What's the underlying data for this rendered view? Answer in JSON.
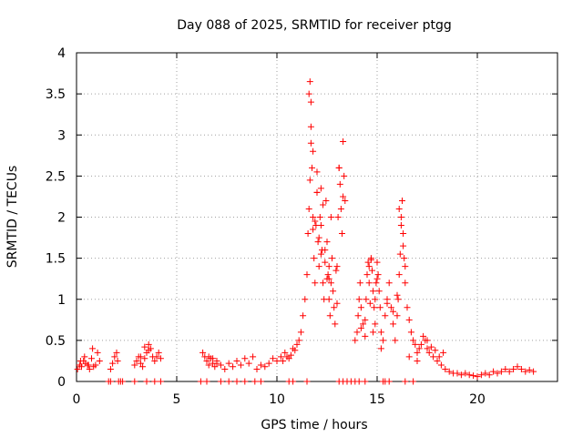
{
  "chart_data": {
    "type": "scatter",
    "title": "Day 088 of 2025, SRMTID for receiver ptgg",
    "xlabel": "GPS time / hours",
    "ylabel": "SRMTID / TECUs",
    "xlim": [
      0,
      24
    ],
    "ylim": [
      0,
      4
    ],
    "xticks": [
      0,
      5,
      10,
      15,
      20
    ],
    "yticks": [
      0,
      0.5,
      1,
      1.5,
      2,
      2.5,
      3,
      3.5,
      4
    ],
    "ytick_labels": [
      "0",
      "0.5",
      "1",
      "1.5",
      "2",
      "2.5",
      "3",
      "3.5",
      "4"
    ],
    "grid": true,
    "marker": "+",
    "color": "#ff0000",
    "series": [
      {
        "name": "SRMTID",
        "x": [
          0.05,
          0.15,
          0.25,
          0.35,
          0.45,
          0.55,
          0.65,
          0.75,
          0.85,
          0.95,
          1.05,
          1.15,
          1.7,
          1.8,
          1.9,
          2.0,
          2.05,
          2.9,
          3.0,
          3.1,
          3.2,
          3.3,
          3.4,
          3.5,
          3.6,
          3.7,
          3.8,
          3.9,
          4.0,
          4.1,
          4.2,
          6.3,
          6.4,
          6.5,
          6.6,
          6.7,
          6.8,
          6.9,
          7.0,
          7.2,
          7.4,
          7.6,
          7.8,
          8.0,
          8.2,
          8.4,
          8.6,
          8.8,
          9.0,
          9.2,
          9.4,
          9.6,
          9.8,
          10.0,
          10.2,
          10.4,
          10.6,
          10.8,
          11.0,
          11.1,
          11.2,
          11.3,
          11.4,
          11.5,
          11.55,
          11.6,
          11.65,
          11.7,
          11.75,
          11.8,
          11.85,
          11.9,
          11.95,
          12.0,
          12.05,
          12.1,
          12.15,
          12.2,
          12.25,
          12.3,
          12.35,
          12.4,
          12.45,
          12.5,
          12.55,
          12.6,
          12.65,
          12.7,
          12.75,
          12.8,
          12.85,
          12.9,
          12.95,
          13.0,
          13.05,
          13.1,
          13.15,
          13.2,
          13.25,
          13.3,
          13.35,
          13.4,
          13.9,
          14.0,
          14.05,
          14.1,
          14.15,
          14.2,
          14.3,
          14.4,
          14.45,
          14.5,
          14.55,
          14.6,
          14.65,
          14.7,
          14.75,
          14.8,
          14.85,
          14.9,
          14.95,
          15.0,
          15.05,
          15.1,
          15.15,
          15.2,
          15.3,
          15.4,
          15.5,
          15.6,
          15.7,
          15.8,
          15.9,
          16.0,
          16.05,
          16.1,
          16.15,
          16.2,
          16.25,
          16.3,
          16.35,
          16.4,
          16.5,
          16.6,
          16.7,
          16.8,
          16.9,
          17.0,
          17.1,
          17.2,
          17.3,
          17.4,
          17.5,
          17.6,
          17.8,
          18.0,
          18.2,
          18.4,
          18.6,
          18.8,
          19.0,
          19.2,
          19.4,
          19.6,
          19.8,
          20.0,
          20.2,
          20.4,
          20.6,
          20.8,
          21.0,
          21.2,
          21.4,
          21.6,
          21.8,
          22.0,
          22.2,
          22.4,
          22.6,
          22.8,
          11.6,
          11.7,
          11.8,
          12.0,
          12.2,
          12.4,
          12.6,
          13.1,
          13.3,
          11.65,
          11.9,
          12.1,
          12.3,
          12.5,
          12.7,
          14.6,
          14.7,
          14.9,
          15.0,
          16.1,
          16.2,
          16.3,
          15.5,
          15.8,
          16.0,
          16.4,
          14.2,
          14.4,
          11.7,
          12.0,
          0.2,
          0.4,
          0.6,
          0.8,
          3.2,
          3.4,
          3.6,
          6.6,
          6.8,
          7.0,
          10.3,
          10.5,
          10.7,
          10.9,
          17.5,
          17.7,
          17.9,
          18.1,
          18.3,
          11.8,
          12.2,
          12.6,
          13.0,
          14.8,
          15.2,
          16.6,
          17.0
        ],
        "y": [
          0.15,
          0.2,
          0.18,
          0.25,
          0.22,
          0.2,
          0.15,
          0.28,
          0.18,
          0.2,
          0.35,
          0.25,
          0.15,
          0.22,
          0.3,
          0.35,
          0.25,
          0.2,
          0.25,
          0.3,
          0.22,
          0.18,
          0.28,
          0.35,
          0.45,
          0.4,
          0.3,
          0.25,
          0.3,
          0.35,
          0.28,
          0.35,
          0.3,
          0.25,
          0.2,
          0.28,
          0.22,
          0.18,
          0.25,
          0.2,
          0.15,
          0.22,
          0.18,
          0.25,
          0.2,
          0.28,
          0.22,
          0.3,
          0.15,
          0.2,
          0.18,
          0.22,
          0.28,
          0.25,
          0.3,
          0.35,
          0.28,
          0.4,
          0.45,
          0.5,
          0.6,
          0.8,
          1.0,
          1.3,
          1.8,
          2.1,
          3.65,
          3.4,
          2.6,
          2.0,
          1.5,
          1.2,
          1.9,
          2.3,
          1.7,
          1.4,
          2.0,
          2.35,
          1.6,
          1.2,
          1.0,
          1.45,
          2.2,
          1.7,
          1.3,
          1.0,
          0.8,
          1.2,
          1.5,
          1.1,
          0.9,
          0.7,
          1.35,
          1.4,
          2.0,
          2.6,
          2.4,
          2.1,
          1.8,
          2.92,
          2.5,
          2.2,
          0.5,
          0.6,
          0.8,
          1.0,
          1.2,
          0.9,
          0.7,
          0.55,
          1.0,
          1.3,
          1.45,
          1.2,
          0.95,
          1.5,
          1.35,
          1.1,
          0.9,
          0.7,
          1.2,
          1.45,
          1.3,
          1.1,
          0.9,
          0.6,
          0.5,
          0.8,
          1.0,
          1.2,
          0.9,
          0.7,
          0.5,
          0.8,
          1.0,
          1.3,
          1.55,
          2.0,
          2.2,
          1.8,
          1.5,
          1.2,
          0.9,
          0.75,
          0.6,
          0.5,
          0.45,
          0.35,
          0.4,
          0.45,
          0.55,
          0.5,
          0.4,
          0.35,
          0.3,
          0.25,
          0.2,
          0.15,
          0.12,
          0.1,
          0.1,
          0.08,
          0.1,
          0.08,
          0.07,
          0.06,
          0.08,
          0.1,
          0.08,
          0.12,
          0.1,
          0.12,
          0.15,
          0.12,
          0.15,
          0.18,
          0.15,
          0.12,
          0.14,
          0.12,
          3.5,
          3.1,
          2.8,
          2.3,
          1.9,
          1.6,
          1.4,
          2.6,
          2.25,
          2.45,
          1.95,
          1.75,
          2.15,
          1.25,
          2.0,
          1.4,
          1.48,
          1.0,
          1.25,
          2.1,
          1.9,
          1.65,
          0.95,
          0.85,
          1.05,
          1.4,
          0.65,
          0.75,
          2.9,
          2.55,
          0.25,
          0.3,
          0.2,
          0.4,
          0.3,
          0.42,
          0.38,
          0.3,
          0.28,
          0.22,
          0.25,
          0.3,
          0.32,
          0.38,
          0.5,
          0.42,
          0.38,
          0.3,
          0.35,
          1.85,
          1.55,
          1.25,
          0.95,
          0.6,
          0.4,
          0.3,
          0.25
        ],
        "baseline_x": [
          1.6,
          1.7,
          2.1,
          2.2,
          2.3,
          2.9,
          3.5,
          3.9,
          4.2,
          6.2,
          6.5,
          7.2,
          7.6,
          8.0,
          8.4,
          8.9,
          9.2,
          10.6,
          10.8,
          11.5,
          13.1,
          13.3,
          13.5,
          13.7,
          13.9,
          14.1,
          14.4,
          15.3,
          15.4,
          15.6,
          16.4,
          16.8
        ]
      }
    ]
  }
}
